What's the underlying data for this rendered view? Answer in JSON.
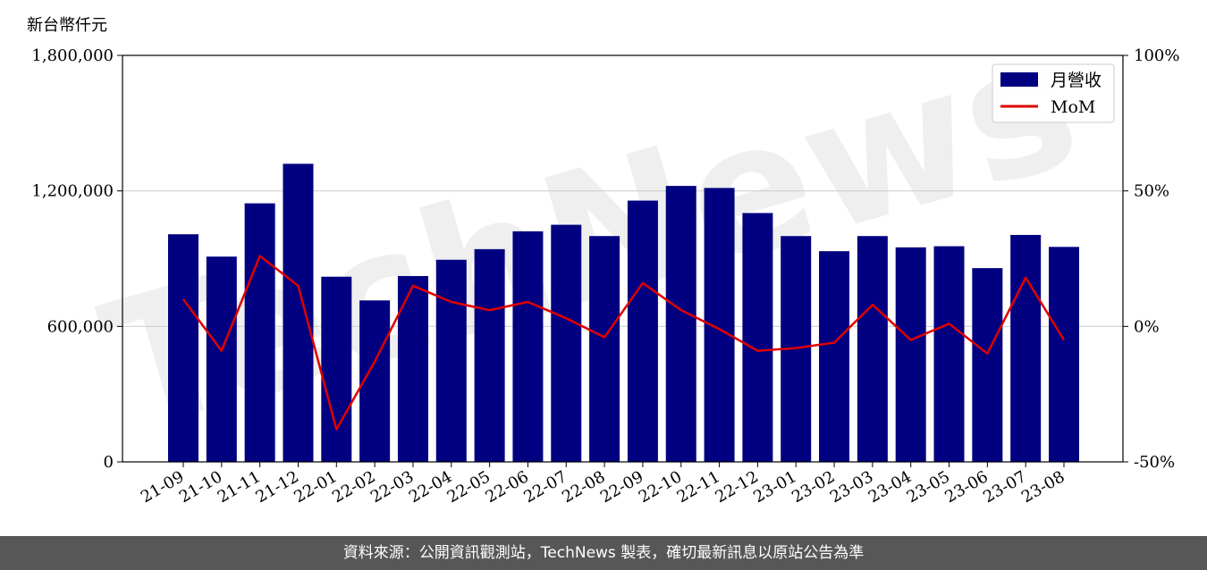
{
  "chart_data": {
    "type": "bar+line",
    "y_unit_label": "新台幣仟元",
    "categories": [
      "21-09",
      "21-10",
      "21-11",
      "21-12",
      "22-01",
      "22-02",
      "22-03",
      "22-04",
      "22-05",
      "22-06",
      "22-07",
      "22-08",
      "22-09",
      "22-10",
      "22-11",
      "22-12",
      "23-01",
      "23-02",
      "23-03",
      "23-04",
      "23-05",
      "23-06",
      "23-07",
      "23-08"
    ],
    "series": [
      {
        "name": "月營收",
        "axis": "left",
        "kind": "bar",
        "color": "#000080",
        "values": [
          1008000,
          909000,
          1145000,
          1320000,
          820000,
          715000,
          823000,
          895000,
          942000,
          1021000,
          1050000,
          1000000,
          1157000,
          1222000,
          1213000,
          1102000,
          1000000,
          933000,
          1000000,
          950000,
          955000,
          858000,
          1005000,
          952000
        ]
      },
      {
        "name": "MoM",
        "axis": "right",
        "kind": "line",
        "color": "#e00000",
        "values": [
          10,
          -9,
          26,
          15,
          -38,
          -13,
          15,
          9,
          6,
          9,
          3,
          -4,
          16,
          6,
          -1,
          -9,
          -8,
          -6,
          8,
          -5,
          1,
          -10,
          18,
          -5
        ]
      }
    ],
    "y_left": {
      "min": 0,
      "max": 1800000,
      "ticks": [
        0,
        600000,
        1200000,
        1800000
      ],
      "tick_labels": [
        "0",
        "600,000",
        "1,200,000",
        "1,800,000"
      ]
    },
    "y_right": {
      "min": -50,
      "max": 100,
      "ticks": [
        -50,
        0,
        50,
        100
      ],
      "tick_labels": [
        "-50%",
        "0%",
        "50%",
        "100%"
      ]
    },
    "grid": "horizontal",
    "legend": "top-right",
    "watermark": "TechNews"
  },
  "footer": {
    "text": "資料來源：公開資訊觀測站，TechNews 製表，確切最新訊息以原站公告為準"
  }
}
